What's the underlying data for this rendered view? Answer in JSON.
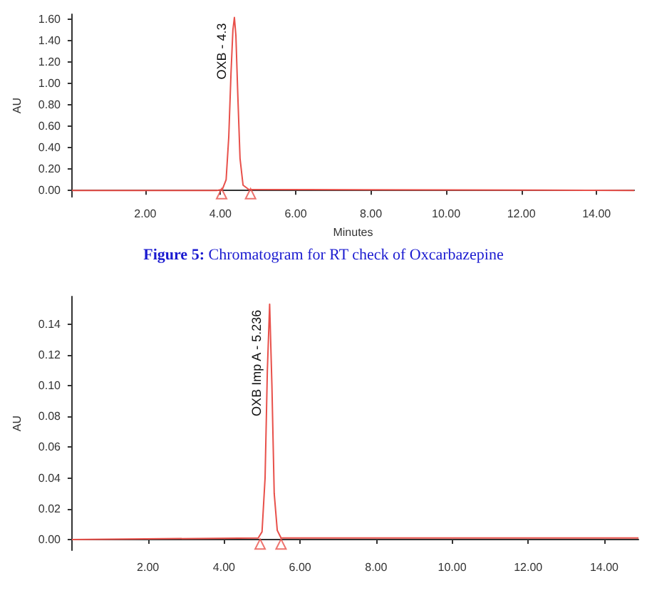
{
  "chart_data": [
    {
      "type": "line",
      "xlabel": "Minutes",
      "ylabel": "AU",
      "xlim": [
        0.05,
        15
      ],
      "ylim": [
        -0.06,
        1.65
      ],
      "xticks": [
        {
          "value": 2,
          "label": "2.00"
        },
        {
          "value": 4,
          "label": "4.00"
        },
        {
          "value": 6,
          "label": "6.00"
        },
        {
          "value": 8,
          "label": "8.00"
        },
        {
          "value": 10,
          "label": "10.00"
        },
        {
          "value": 12,
          "label": "12.00"
        },
        {
          "value": 14,
          "label": "14.00"
        }
      ],
      "yticks": [
        {
          "value": 0,
          "label": "0.00"
        },
        {
          "value": 0.2,
          "label": "0.20"
        },
        {
          "value": 0.4,
          "label": "0.40"
        },
        {
          "value": 0.6,
          "label": "0.60"
        },
        {
          "value": 0.8,
          "label": "0.80"
        },
        {
          "value": 1,
          "label": "1.00"
        },
        {
          "value": 1.2,
          "label": "1.20"
        },
        {
          "value": 1.4,
          "label": "1.40"
        },
        {
          "value": 1.6,
          "label": "1.60"
        }
      ],
      "grid": false,
      "marker": "none",
      "line_style": "solid",
      "series": [
        {
          "color": "#e8504a",
          "x": [
            0.05,
            3.9,
            4.05,
            4.15,
            4.22,
            4.28,
            4.33,
            4.37,
            4.41,
            4.46,
            4.52,
            4.6,
            4.75,
            15
          ],
          "values": [
            0,
            0,
            0.01,
            0.1,
            0.5,
            1.1,
            1.5,
            1.62,
            1.45,
            0.9,
            0.3,
            0.05,
            0.01,
            0
          ]
        },
        {
          "type": "scatter",
          "marker": "triangle",
          "color": "#e8504a",
          "x": [
            4.03,
            4.8
          ],
          "values": [
            -0.03,
            -0.03
          ]
        }
      ],
      "annotations": [
        {
          "text": "OXB - 4.3",
          "x": 4.37,
          "y": 1.62
        },
        "Figure 5: Chromatogram for RT check of Oxcarbazepine"
      ]
    },
    {
      "type": "line",
      "ylabel": "AU",
      "xlim": [
        0,
        14.9
      ],
      "ylim": [
        -0.007,
        0.158
      ],
      "xticks": [
        {
          "value": 2,
          "label": "2.00"
        },
        {
          "value": 4,
          "label": "4.00"
        },
        {
          "value": 6,
          "label": "6.00"
        },
        {
          "value": 8,
          "label": "8.00"
        },
        {
          "value": 10,
          "label": "10.00"
        },
        {
          "value": 12,
          "label": "12.00"
        },
        {
          "value": 14,
          "label": "14.00"
        }
      ],
      "yticks": [
        {
          "value": 0,
          "label": "0.00"
        },
        {
          "value": 0.02,
          "label": "0.02"
        },
        {
          "value": 0.04,
          "label": "0.04"
        },
        {
          "value": 0.06,
          "label": "0.06"
        },
        {
          "value": 0.08,
          "label": "0.08"
        },
        {
          "value": 0.1,
          "label": "0.10"
        },
        {
          "value": 0.12,
          "label": "0.12"
        },
        {
          "value": 0.14,
          "label": "0.14"
        }
      ],
      "grid": false,
      "marker": "none",
      "line_style": "solid",
      "series": [
        {
          "color": "#e8504a",
          "x": [
            0,
            4.9,
            5.0,
            5.08,
            5.14,
            5.2,
            5.26,
            5.32,
            5.4,
            5.5,
            8,
            14.9
          ],
          "values": [
            0,
            0.001,
            0.005,
            0.04,
            0.11,
            0.153,
            0.1,
            0.03,
            0.006,
            0.001,
            0.001,
            0.001
          ]
        },
        {
          "type": "scatter",
          "marker": "triangle",
          "color": "#e8504a",
          "x": [
            4.95,
            5.5
          ],
          "values": [
            -0.003,
            -0.003
          ]
        }
      ],
      "annotations": [
        {
          "text": "OXB Imp A - 5.236",
          "x": 5.2,
          "y": 0.153
        }
      ]
    }
  ]
}
